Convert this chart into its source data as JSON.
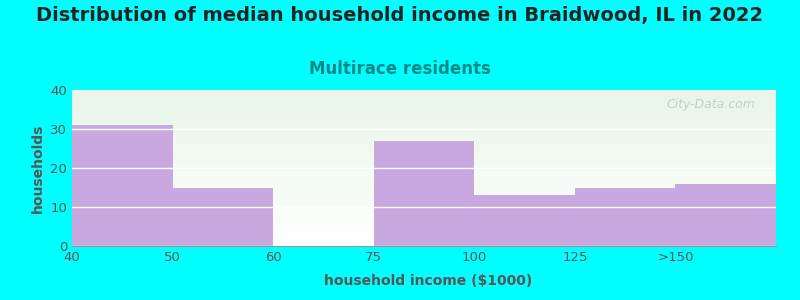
{
  "title": "Distribution of median household income in Braidwood, IL in 2022",
  "subtitle": "Multirace residents",
  "xlabel": "household income ($1000)",
  "ylabel": "households",
  "categories": [
    "40",
    "50",
    "60",
    "75",
    "100",
    "125",
    ">150"
  ],
  "values": [
    31,
    15,
    0,
    27,
    13,
    15,
    16
  ],
  "bar_color": "#c9a8e0",
  "background_color": "#00ffff",
  "plot_bg_top": "#e8f5e8",
  "plot_bg_bottom": "#ffffff",
  "ylim": [
    0,
    40
  ],
  "yticks": [
    0,
    10,
    20,
    30,
    40
  ],
  "watermark": "City-Data.com",
  "title_fontsize": 14,
  "subtitle_fontsize": 12,
  "subtitle_color": "#008888",
  "ylabel_color": "#555555",
  "xlabel_color": "#555555",
  "tick_label_color": "#555555"
}
